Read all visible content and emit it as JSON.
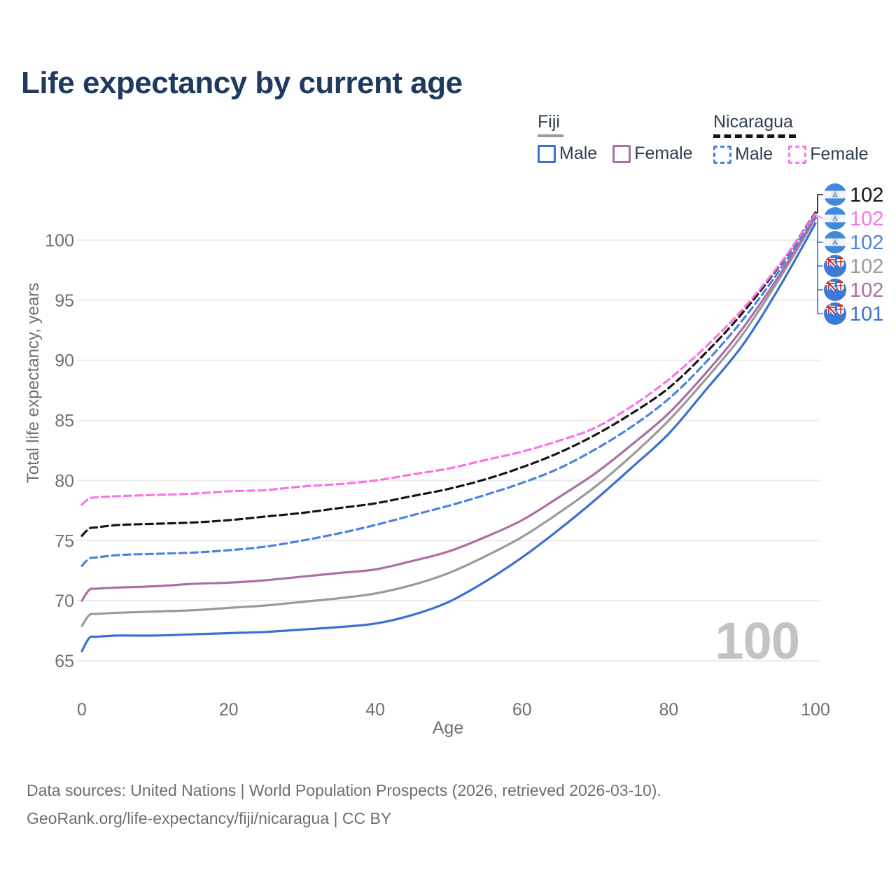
{
  "title": "Life expectancy by current age",
  "legend": {
    "groups": [
      {
        "country": "Fiji",
        "line_style": "solid",
        "line_color": "#9a9a9a",
        "items": [
          {
            "label": "Male",
            "color": "#3b70d1",
            "dashed": false
          },
          {
            "label": "Female",
            "color": "#ab6fa5",
            "dashed": false
          }
        ]
      },
      {
        "country": "Nicaragua",
        "line_style": "dashed",
        "line_color": "#151515",
        "items": [
          {
            "label": "Male",
            "color": "#4c82e0",
            "dashed": true
          },
          {
            "label": "Female",
            "color": "#fb74e3",
            "dashed": true
          }
        ]
      }
    ]
  },
  "chart_data": {
    "type": "line",
    "title": "Life expectancy by current age",
    "xlabel": "Age",
    "ylabel": "Total life expectancy, years",
    "xlim": [
      0,
      100
    ],
    "ylim": [
      65,
      102.5
    ],
    "x_ticks": [
      0,
      20,
      40,
      60,
      80,
      100
    ],
    "y_ticks": [
      65,
      70,
      75,
      80,
      85,
      90,
      95,
      100
    ],
    "grid": "horizontal",
    "legend_position": "top-right",
    "watermark": "100",
    "ages": [
      0,
      1,
      2,
      5,
      10,
      15,
      20,
      25,
      30,
      35,
      40,
      45,
      50,
      55,
      60,
      65,
      70,
      75,
      80,
      85,
      90,
      95,
      100
    ],
    "series": [
      {
        "name": "Fiji Male",
        "country": "Fiji",
        "sex": "Male",
        "style": "solid",
        "color": "#3b70d1",
        "values": [
          65.8,
          66.9,
          67.0,
          67.1,
          67.1,
          67.2,
          67.3,
          67.4,
          67.6,
          67.8,
          68.1,
          68.8,
          69.9,
          71.6,
          73.6,
          75.9,
          78.4,
          81.1,
          83.9,
          87.5,
          91.2,
          96.0,
          101.4
        ]
      },
      {
        "name": "Fiji Both sexes",
        "country": "Fiji",
        "sex": "Both",
        "style": "solid",
        "color": "#9a9a9a",
        "values": [
          67.9,
          68.8,
          68.9,
          69.0,
          69.1,
          69.2,
          69.4,
          69.6,
          69.9,
          70.2,
          70.6,
          71.3,
          72.3,
          73.7,
          75.3,
          77.3,
          79.5,
          82.1,
          85.0,
          88.4,
          92.1,
          96.7,
          101.8
        ]
      },
      {
        "name": "Fiji Female",
        "country": "Fiji",
        "sex": "Female",
        "style": "solid",
        "color": "#ab6fa5",
        "values": [
          70.0,
          70.9,
          71.0,
          71.1,
          71.2,
          71.4,
          71.5,
          71.7,
          72.0,
          72.3,
          72.6,
          73.3,
          74.1,
          75.3,
          76.7,
          78.6,
          80.6,
          83.0,
          85.6,
          88.9,
          92.6,
          97.0,
          101.9
        ]
      },
      {
        "name": "Nicaragua Male",
        "country": "Nicaragua",
        "sex": "Male",
        "style": "dashed",
        "color": "#4c82e0",
        "values": [
          72.9,
          73.5,
          73.6,
          73.8,
          73.9,
          74.0,
          74.2,
          74.5,
          75.0,
          75.6,
          76.3,
          77.1,
          77.9,
          78.8,
          79.8,
          81.0,
          82.6,
          84.5,
          86.8,
          89.8,
          93.3,
          97.4,
          102.1
        ]
      },
      {
        "name": "Nicaragua Both sexes",
        "country": "Nicaragua",
        "sex": "Both",
        "style": "dashed",
        "color": "#151515",
        "values": [
          75.4,
          76.0,
          76.1,
          76.3,
          76.4,
          76.5,
          76.7,
          77.0,
          77.3,
          77.7,
          78.1,
          78.7,
          79.3,
          80.1,
          81.1,
          82.3,
          83.8,
          85.6,
          87.7,
          90.6,
          93.9,
          97.8,
          102.3
        ]
      },
      {
        "name": "Nicaragua Female",
        "country": "Nicaragua",
        "sex": "Female",
        "style": "dashed",
        "color": "#fb74e3",
        "values": [
          78.0,
          78.5,
          78.6,
          78.7,
          78.8,
          78.9,
          79.1,
          79.2,
          79.5,
          79.7,
          80.0,
          80.5,
          81.0,
          81.7,
          82.4,
          83.3,
          84.4,
          86.2,
          88.4,
          91.1,
          94.2,
          97.9,
          102.2
        ]
      }
    ],
    "end_labels": [
      {
        "country": "Nicaragua",
        "flag": "nic",
        "value": "102",
        "color": "#151515"
      },
      {
        "country": "Nicaragua",
        "flag": "nic",
        "value": "102",
        "color": "#fb74e3"
      },
      {
        "country": "Nicaragua",
        "flag": "nic",
        "value": "102",
        "color": "#4c82e0"
      },
      {
        "country": "Fiji",
        "flag": "fij",
        "value": "102",
        "color": "#9a9a9a"
      },
      {
        "country": "Fiji",
        "flag": "fij",
        "value": "102",
        "color": "#ab6fa5"
      },
      {
        "country": "Fiji",
        "flag": "fij",
        "value": "101",
        "color": "#3b70d1"
      }
    ]
  },
  "footer": {
    "line1": "Data sources: United Nations | World Population Prospects (2026, retrieved 2026-03-10).",
    "line2": "GeoRank.org/life-expectancy/fiji/nicaragua | CC BY"
  }
}
